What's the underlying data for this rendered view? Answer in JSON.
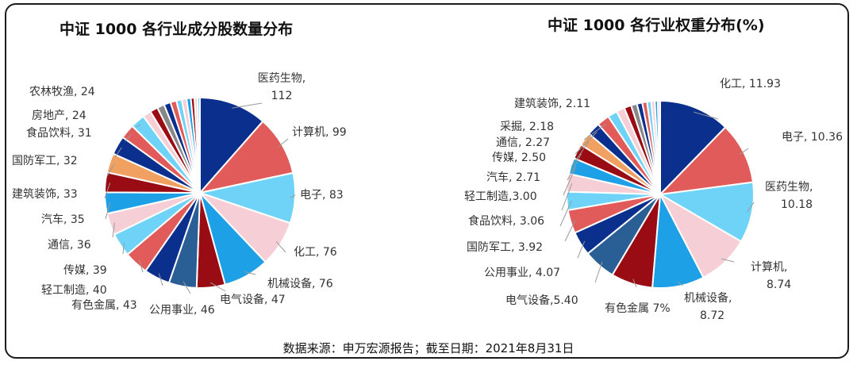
{
  "source_note": "数据来源：申万宏源报告；截至日期：2021年8月31日",
  "chart_data": [
    {
      "type": "pie",
      "title": "中证 1000 各行业成分股数量分布",
      "slices": [
        {
          "label": "医药生物",
          "value": 112,
          "text": "医药生物,",
          "text2": "112",
          "color": "#0a2f8c"
        },
        {
          "label": "计算机",
          "value": 99,
          "text": "计算机, 99",
          "color": "#e25b5b"
        },
        {
          "label": "电子",
          "value": 83,
          "text": "电子, 83",
          "color": "#6fd3f7"
        },
        {
          "label": "化工",
          "value": 76,
          "text": "化工, 76",
          "color": "#f6cfd6"
        },
        {
          "label": "机械设备",
          "value": 76,
          "text": "机械设备, 76",
          "color": "#1ea0e6"
        },
        {
          "label": "电气设备",
          "value": 47,
          "text": "电气设备, 47",
          "color": "#9a0c14"
        },
        {
          "label": "公用事业",
          "value": 46,
          "text": "公用事业, 46",
          "color": "#2a5f95"
        },
        {
          "label": "有色金属",
          "value": 43,
          "text": "有色金属, 43",
          "color": "#0a2f8c"
        },
        {
          "label": "轻工制造",
          "value": 40,
          "text": "轻工制造, 40",
          "color": "#e25b5b"
        },
        {
          "label": "传媒",
          "value": 39,
          "text": "传媒, 39",
          "color": "#6fd3f7"
        },
        {
          "label": "通信",
          "value": 36,
          "text": "通信, 36",
          "color": "#f6cfd6"
        },
        {
          "label": "汽车",
          "value": 35,
          "text": "汽车, 35",
          "color": "#1ea0e6"
        },
        {
          "label": "建筑装饰",
          "value": 33,
          "text": "建筑装饰, 33",
          "color": "#9a0c14"
        },
        {
          "label": "国防军工",
          "value": 32,
          "text": "国防军工, 32",
          "color": "#f0a060"
        },
        {
          "label": "食品饮料",
          "value": 31,
          "text": "食品饮料, 31",
          "color": "#0a2f8c"
        },
        {
          "label": "房地产",
          "value": 24,
          "text": "房地产, 24",
          "color": "#e25b5b"
        },
        {
          "label": "农林牧渔",
          "value": 24,
          "text": "农林牧渔, 24",
          "color": "#6fd3f7"
        },
        {
          "label": "",
          "value": 14,
          "color": "#f6cfd6"
        },
        {
          "label": "",
          "value": 13,
          "color": "#9a0c14"
        },
        {
          "label": "",
          "value": 12,
          "color": "#888888"
        },
        {
          "label": "",
          "value": 11,
          "color": "#0a2f8c"
        },
        {
          "label": "",
          "value": 10,
          "color": "#e25b5b"
        },
        {
          "label": "",
          "value": 9,
          "color": "#6fd3f7"
        },
        {
          "label": "",
          "value": 8,
          "color": "#f6cfd6"
        },
        {
          "label": "",
          "value": 7,
          "color": "#1ea0e6"
        },
        {
          "label": "",
          "value": 6,
          "color": "#9a0c14"
        },
        {
          "label": "",
          "value": 5,
          "color": "#f6cfd6"
        },
        {
          "label": "",
          "value": 4,
          "color": "#6fd3f7"
        }
      ]
    },
    {
      "type": "pie",
      "title": "中证 1000 各行业权重分布(%)",
      "slices": [
        {
          "label": "化工",
          "value": 11.93,
          "text": "化工, 11.93",
          "color": "#0a2f8c"
        },
        {
          "label": "电子",
          "value": 10.36,
          "text": "电子, 10.36",
          "color": "#e25b5b"
        },
        {
          "label": "医药生物",
          "value": 10.18,
          "text": "医药生物,",
          "text2": "10.18",
          "color": "#6fd3f7"
        },
        {
          "label": "计算机",
          "value": 8.74,
          "text": "计算机,",
          "text2": "8.74",
          "color": "#f6cfd6"
        },
        {
          "label": "机械设备",
          "value": 8.72,
          "text": "机械设备,",
          "text2": "8.72",
          "color": "#1ea0e6"
        },
        {
          "label": "有色金属",
          "value": 7,
          "text": "有色金属 7%",
          "color": "#9a0c14"
        },
        {
          "label": "电气设备",
          "value": 5.4,
          "text": "电气设备,5.40",
          "color": "#2a5f95"
        },
        {
          "label": "公用事业",
          "value": 4.07,
          "text": "公用事业, 4.07",
          "color": "#0a2f8c"
        },
        {
          "label": "国防军工",
          "value": 3.92,
          "text": "国防军工, 3.92",
          "color": "#e25b5b"
        },
        {
          "label": "食品饮料",
          "value": 3.06,
          "text": "食品饮料, 3.06",
          "color": "#6fd3f7"
        },
        {
          "label": "轻工制造",
          "value": 3.0,
          "text": "轻工制造,3.00",
          "color": "#f6cfd6"
        },
        {
          "label": "汽车",
          "value": 2.71,
          "text": "汽车, 2.71",
          "color": "#1ea0e6"
        },
        {
          "label": "传媒",
          "value": 2.5,
          "text": "传媒, 2.50",
          "color": "#9a0c14"
        },
        {
          "label": "通信",
          "value": 2.27,
          "text": "通信, 2.27",
          "color": "#f0a060"
        },
        {
          "label": "采掘",
          "value": 2.18,
          "text": "采掘, 2.18",
          "color": "#0a2f8c"
        },
        {
          "label": "建筑装饰",
          "value": 2.11,
          "text": "建筑装饰, 2.11",
          "color": "#e25b5b"
        },
        {
          "label": "",
          "value": 1.6,
          "color": "#6fd3f7"
        },
        {
          "label": "",
          "value": 1.4,
          "color": "#f6cfd6"
        },
        {
          "label": "",
          "value": 1.2,
          "color": "#9a0c14"
        },
        {
          "label": "",
          "value": 1.0,
          "color": "#888888"
        },
        {
          "label": "",
          "value": 0.9,
          "color": "#0a2f8c"
        },
        {
          "label": "",
          "value": 0.8,
          "color": "#e25b5b"
        },
        {
          "label": "",
          "value": 0.7,
          "color": "#6fd3f7"
        },
        {
          "label": "",
          "value": 0.6,
          "color": "#f6cfd6"
        },
        {
          "label": "",
          "value": 0.5,
          "color": "#1ea0e6"
        },
        {
          "label": "",
          "value": 0.4,
          "color": "#f6cfd6"
        }
      ]
    }
  ]
}
